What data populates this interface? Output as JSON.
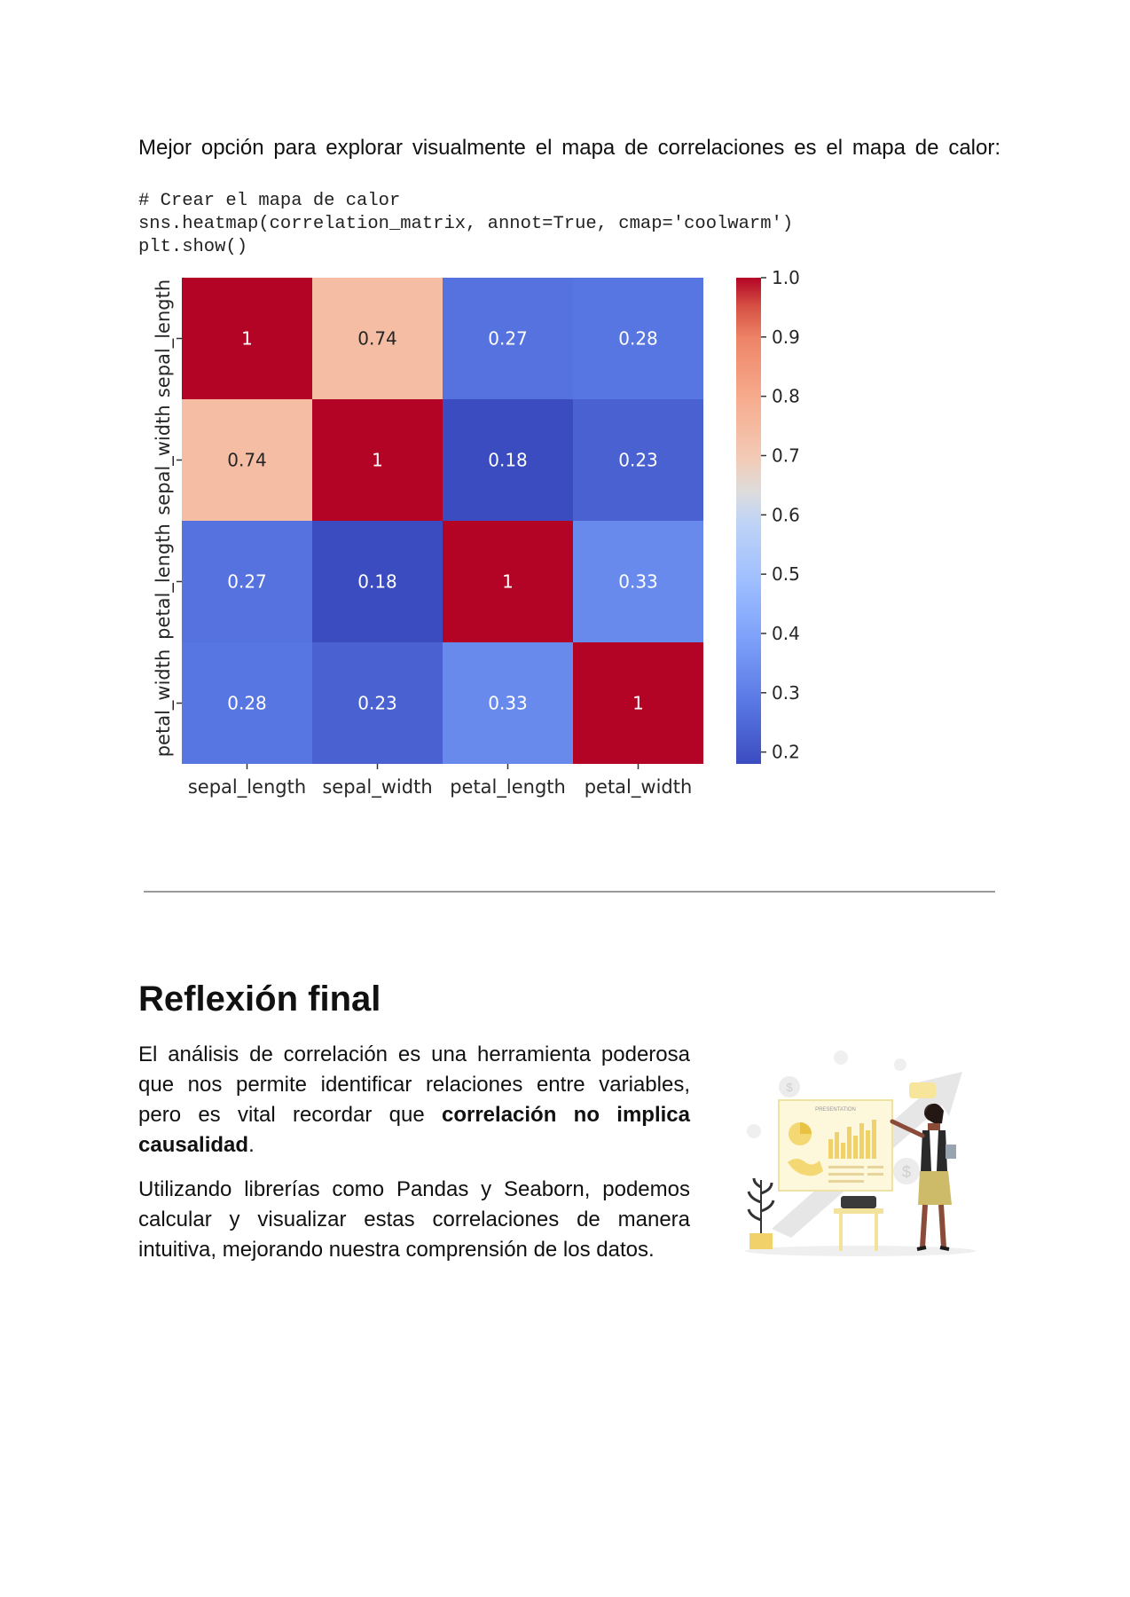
{
  "intro_text": "Mejor opción para explorar visualmente el mapa de correlaciones es el mapa de calor:",
  "code_lines": [
    "# Crear el mapa de calor",
    "sns.heatmap(correlation_matrix, annot=True, cmap='coolwarm')",
    "plt.show()"
  ],
  "chart_data": {
    "type": "heatmap",
    "title": "",
    "x_labels": [
      "sepal_length",
      "sepal_width",
      "petal_length",
      "petal_width"
    ],
    "y_labels": [
      "sepal_length",
      "sepal_width",
      "petal_length",
      "petal_width"
    ],
    "values": [
      [
        1,
        0.74,
        0.27,
        0.28
      ],
      [
        0.74,
        1,
        0.18,
        0.23
      ],
      [
        0.27,
        0.18,
        1,
        0.33
      ],
      [
        0.28,
        0.23,
        0.33,
        1
      ]
    ],
    "annotations": [
      [
        "1",
        "0.74",
        "0.27",
        "0.28"
      ],
      [
        "0.74",
        "1",
        "0.18",
        "0.23"
      ],
      [
        "0.27",
        "0.18",
        "1",
        "0.33"
      ],
      [
        "0.28",
        "0.23",
        "0.33",
        "1"
      ]
    ],
    "colormap": "coolwarm",
    "colorbar_range": [
      0.18,
      1.0
    ],
    "colorbar_ticks": [
      "1.0",
      "0.9",
      "0.8",
      "0.7",
      "0.6",
      "0.5",
      "0.4",
      "0.3",
      "0.2"
    ],
    "colorbar_tick_values": [
      1.0,
      0.9,
      0.8,
      0.7,
      0.6,
      0.5,
      0.4,
      0.3,
      0.2
    ]
  },
  "section": {
    "heading": "Reflexión final",
    "p1_before": "El análisis de correlación es una herramienta poderosa que nos permite identificar relaciones entre variables, pero es vital recordar que ",
    "p1_bold": "correlación no implica causalidad",
    "p1_after": ".",
    "p2": "Utilizando librerías como Pandas y Seaborn, podemos calcular y visualizar estas correlaciones de manera intuitiva, mejorando nuestra comprensión de los datos."
  },
  "illustration": {
    "presentation_label": "PRESENTATION"
  }
}
